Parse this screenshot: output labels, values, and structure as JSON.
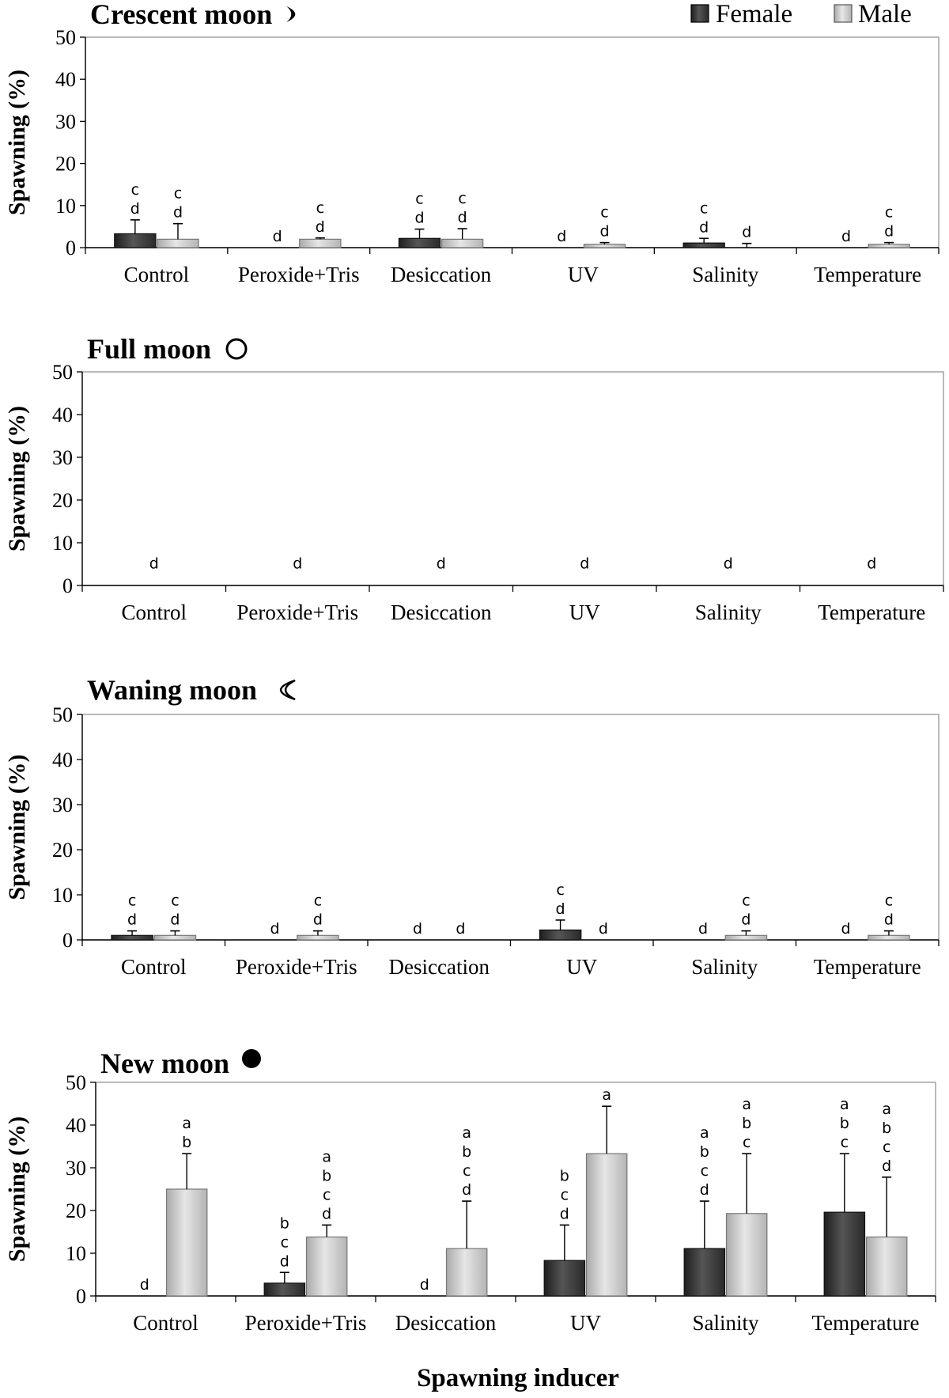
{
  "legend": {
    "position": "top-right",
    "series": [
      {
        "name": "Female",
        "color": "#3a3a3a"
      },
      {
        "name": "Male",
        "color": "#cfcfcf"
      }
    ]
  },
  "x_axis_title": "Spawning inducer",
  "chart_data": [
    {
      "type": "bar",
      "title": "Crescent moon",
      "title_icon": "crescent-moon-icon",
      "ylabel": "Spawning (%)",
      "ylim": [
        0,
        50
      ],
      "yticks": [
        "0",
        "10",
        "20",
        "30",
        "40",
        "50"
      ],
      "categories": [
        "Control",
        "Peroxide+Tris",
        "Desiccation",
        "UV",
        "Salinity",
        "Temperature"
      ],
      "series": [
        {
          "name": "Female",
          "values": [
            3.3,
            0,
            2.2,
            0,
            1.1,
            0
          ],
          "errors": [
            3.3,
            0,
            2.2,
            0,
            1.1,
            0
          ],
          "letters": [
            "cd",
            "d",
            "cd",
            "d",
            "cd",
            "d"
          ]
        },
        {
          "name": "Male",
          "values": [
            2.0,
            2.0,
            2.0,
            0.8,
            0,
            0.8
          ],
          "errors": [
            3.7,
            0.3,
            2.5,
            0.4,
            1.0,
            0.4
          ],
          "letters": [
            "cd",
            "cd",
            "cd",
            "cd",
            "d",
            "cd"
          ]
        }
      ]
    },
    {
      "type": "bar",
      "title": "Full moon",
      "title_icon": "full-moon-icon",
      "ylabel": "Spawning (%)",
      "ylim": [
        0,
        50
      ],
      "yticks": [
        "0",
        "10",
        "20",
        "30",
        "40",
        "50"
      ],
      "categories": [
        "Control",
        "Peroxide+Tris",
        "Desiccation",
        "UV",
        "Salinity",
        "Temperature"
      ],
      "series": [
        {
          "name": "Female",
          "values": [
            0,
            0,
            0,
            0,
            0,
            0
          ],
          "errors": [
            0,
            0,
            0,
            0,
            0,
            0
          ],
          "letters": [
            "",
            "",
            "",
            "",
            "",
            ""
          ]
        },
        {
          "name": "Male",
          "values": [
            0,
            0,
            0,
            0,
            0,
            0
          ],
          "errors": [
            0,
            0,
            0,
            0,
            0,
            0
          ],
          "letters": [
            "",
            "",
            "",
            "",
            "",
            ""
          ]
        }
      ],
      "category_letters": [
        "d",
        "d",
        "d",
        "d",
        "d",
        "d"
      ]
    },
    {
      "type": "bar",
      "title": "Waning moon",
      "title_icon": "waning-moon-icon",
      "ylabel": "Spawning (%)",
      "ylim": [
        0,
        50
      ],
      "yticks": [
        "0",
        "10",
        "20",
        "30",
        "40",
        "50"
      ],
      "categories": [
        "Control",
        "Peroxide+Tris",
        "Desiccation",
        "UV",
        "Salinity",
        "Temperature"
      ],
      "series": [
        {
          "name": "Female",
          "values": [
            1.0,
            0,
            0,
            2.2,
            0,
            0
          ],
          "errors": [
            1.0,
            0,
            0,
            2.2,
            0,
            0
          ],
          "letters": [
            "cd",
            "d",
            "d",
            "cd",
            "d",
            "d"
          ]
        },
        {
          "name": "Male",
          "values": [
            1.0,
            1.0,
            0,
            0,
            1.0,
            1.0
          ],
          "errors": [
            1.0,
            1.0,
            0,
            0,
            1.0,
            1.0
          ],
          "letters": [
            "cd",
            "cd",
            "d",
            "d",
            "cd",
            "cd"
          ]
        }
      ]
    },
    {
      "type": "bar",
      "title": "New moon",
      "title_icon": "new-moon-icon",
      "ylabel": "Spawning (%)",
      "ylim": [
        0,
        50
      ],
      "yticks": [
        "0",
        "10",
        "20",
        "30",
        "40",
        "50"
      ],
      "categories": [
        "Control",
        "Peroxide+Tris",
        "Desiccation",
        "UV",
        "Salinity",
        "Temperature"
      ],
      "series": [
        {
          "name": "Female",
          "values": [
            0,
            3.0,
            0,
            8.3,
            11.1,
            19.6
          ],
          "errors": [
            0,
            2.5,
            0,
            8.3,
            11.1,
            13.7
          ],
          "letters": [
            "d",
            "bcd",
            "d",
            "bcd",
            "abcd",
            "abc"
          ]
        },
        {
          "name": "Male",
          "values": [
            25.0,
            13.8,
            11.1,
            33.3,
            19.3,
            13.8
          ],
          "errors": [
            8.3,
            2.8,
            11.1,
            11.1,
            14.0,
            14.0
          ],
          "letters": [
            "ab",
            "abcd",
            "abcd",
            "a",
            "abc",
            "abcd"
          ]
        }
      ]
    }
  ]
}
